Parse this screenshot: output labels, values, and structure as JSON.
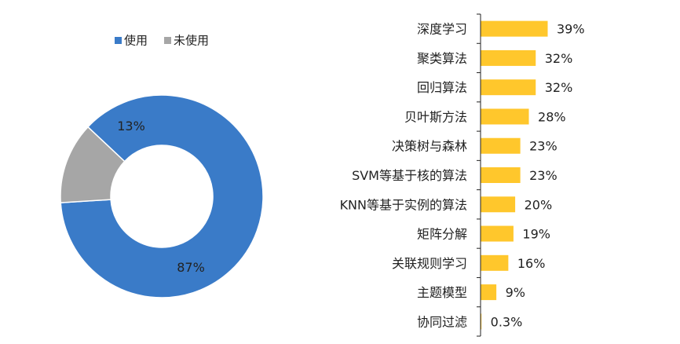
{
  "chart_data": [
    {
      "type": "pie",
      "subtype": "donut",
      "legend_position": "top-left",
      "slices": [
        {
          "name": "使用",
          "value": 87,
          "label": "87%",
          "color": "#3A7BC8"
        },
        {
          "name": "未使用",
          "value": 13,
          "label": "13%",
          "color": "#A6A6A6"
        }
      ]
    },
    {
      "type": "bar",
      "orientation": "horizontal",
      "color": "#FFC72C",
      "xlim": [
        0,
        45
      ],
      "categories": [
        "深度学习",
        "聚类算法",
        "回归算法",
        "贝叶斯方法",
        "决策树与森林",
        "SVM等基于核的算法",
        "KNN等基于实例的算法",
        "矩阵分解",
        "关联规则学习",
        "主题模型",
        "协同过滤"
      ],
      "values": [
        39,
        32,
        32,
        28,
        23,
        23,
        20,
        19,
        16,
        9,
        0.3
      ],
      "value_labels": [
        "39%",
        "32%",
        "32%",
        "28%",
        "23%",
        "23%",
        "20%",
        "19%",
        "16%",
        "9%",
        "0.3%"
      ]
    }
  ]
}
